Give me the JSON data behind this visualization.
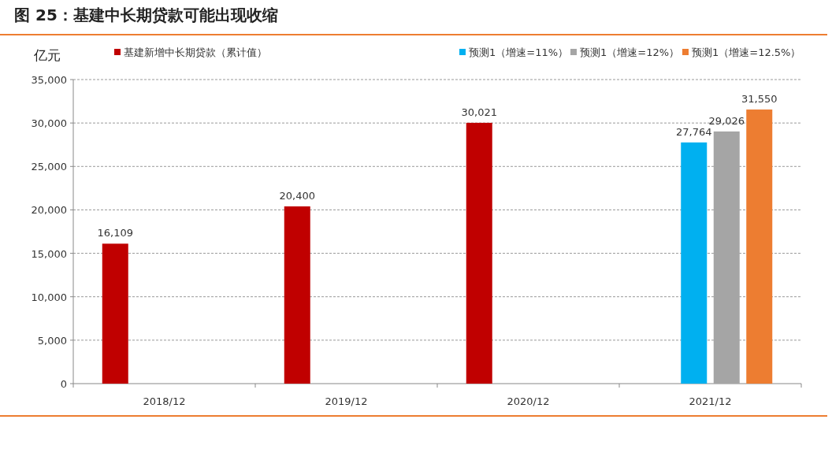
{
  "chart_data": {
    "type": "bar",
    "title": "图 25：基建中长期贷款可能出现收缩",
    "ylabel": "亿元",
    "categories": [
      "2018/12",
      "2019/12",
      "2020/12",
      "2021/12"
    ],
    "series": [
      {
        "name": "基建新增中长期贷款（累计值）",
        "color": "#c00000",
        "values": [
          16109,
          20400,
          30021,
          null
        ],
        "value_labels": [
          "16,109",
          "20,400",
          "30,021",
          null
        ]
      },
      {
        "name": "预测1（增速=11%）",
        "color": "#00b0f0",
        "values": [
          null,
          null,
          null,
          27764
        ],
        "value_labels": [
          null,
          null,
          null,
          "27,764"
        ]
      },
      {
        "name": "预测1（增速=12%）",
        "color": "#a5a5a5",
        "values": [
          null,
          null,
          null,
          29026
        ],
        "value_labels": [
          null,
          null,
          null,
          "29,026"
        ]
      },
      {
        "name": "预测1（增速=12.5%）",
        "color": "#ed7d31",
        "values": [
          null,
          null,
          null,
          31550
        ],
        "value_labels": [
          null,
          null,
          null,
          "31,550"
        ]
      }
    ],
    "ylim": [
      0,
      35000
    ],
    "yticks": [
      0,
      {
        "value": 5000,
        "label": "5,000"
      },
      {
        "value": 10000,
        "label": "10,000"
      },
      {
        "value": 15000,
        "label": "15,000"
      },
      {
        "value": 20000,
        "label": "20,000"
      },
      {
        "value": 25000,
        "label": "25,000"
      },
      {
        "value": 30000,
        "label": "30,000"
      },
      {
        "value": 35000,
        "label": "35,000"
      }
    ],
    "grid": "y",
    "legend": "top"
  }
}
